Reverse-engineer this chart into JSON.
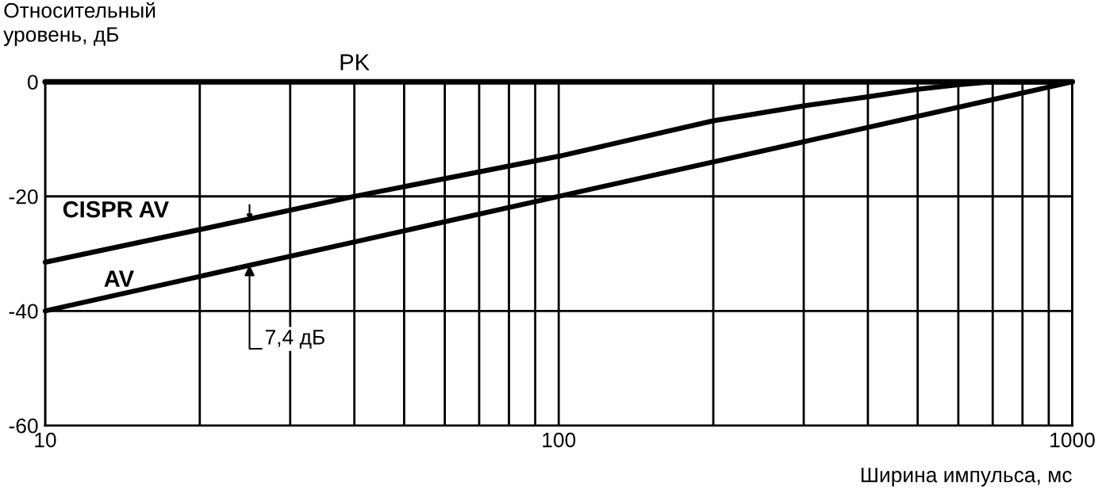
{
  "chart_data": {
    "type": "line",
    "xlabel": "Ширина импульса, мс",
    "ylabel": "Относительный\nуровень, дБ",
    "log": "x",
    "xlim": [
      10,
      1000
    ],
    "ylim": [
      -60,
      0
    ],
    "xticks": [
      10,
      {
        "value": 20,
        "label": null
      },
      {
        "value": 30,
        "label": null
      },
      {
        "value": 40,
        "label": null
      },
      {
        "value": 50,
        "label": null
      },
      {
        "value": 60,
        "label": null
      },
      {
        "value": 70,
        "label": null
      },
      {
        "value": 80,
        "label": null
      },
      {
        "value": 90,
        "label": null
      },
      100,
      {
        "value": 200,
        "label": null
      },
      {
        "value": 300,
        "label": null
      },
      {
        "value": 400,
        "label": null
      },
      {
        "value": 500,
        "label": null
      },
      {
        "value": 600,
        "label": null
      },
      {
        "value": 700,
        "label": null
      },
      {
        "value": 800,
        "label": null
      },
      {
        "value": 900,
        "label": null
      },
      1000
    ],
    "yticks": [
      0,
      -20,
      -40,
      -60
    ],
    "grid": true,
    "marker": "none",
    "line_style": "solid",
    "series": [
      {
        "name": "PK",
        "color": "#000000",
        "x": [
          10,
          1000
        ],
        "values": [
          0,
          0
        ]
      },
      {
        "name": "CISPR AV",
        "color": "#000000",
        "x": [
          10,
          20,
          40,
          100,
          200,
          300,
          400,
          500,
          600,
          700,
          1000
        ],
        "values": [
          -31.5,
          -25.8,
          -20,
          -13,
          -6.8,
          -4.2,
          -2.6,
          -1.3,
          -0.5,
          0,
          0
        ]
      },
      {
        "name": "AV",
        "color": "#000000",
        "x": [
          10,
          100,
          1000
        ],
        "values": [
          -40,
          -20,
          0
        ]
      }
    ],
    "annotations": [
      {
        "text": "7,4 дБ",
        "x": 25,
        "y": -32
      }
    ]
  }
}
